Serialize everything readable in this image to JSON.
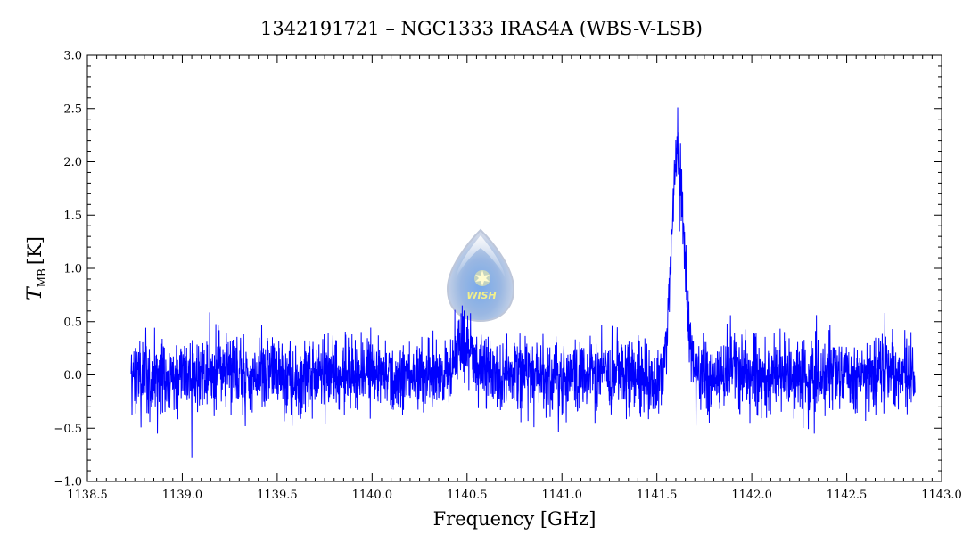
{
  "chart_data": {
    "type": "line",
    "title": "1342191721 – NGC1333 IRAS4A (WBS-V-LSB)",
    "xlabel": "Frequency [GHz]",
    "ylabel_main": "T",
    "ylabel_sub": "MB",
    "ylabel_unit": "[K]",
    "xlim": [
      1138.5,
      1143.0
    ],
    "ylim": [
      -1.0,
      3.0
    ],
    "x_ticks": [
      1138.5,
      1139.0,
      1139.5,
      1140.0,
      1140.5,
      1141.0,
      1141.5,
      1142.0,
      1142.5,
      1143.0
    ],
    "x_tick_labels": [
      "1138.5",
      "1139.0",
      "1139.5",
      "1140.0",
      "1140.5",
      "1141.0",
      "1141.5",
      "1142.0",
      "1142.5",
      "1143.0"
    ],
    "y_ticks": [
      -1.0,
      -0.5,
      0.0,
      0.5,
      1.0,
      1.5,
      2.0,
      2.5,
      3.0
    ],
    "y_tick_labels": [
      "−1.0",
      "−0.5",
      "0.0",
      "0.5",
      "1.0",
      "1.5",
      "2.0",
      "2.5",
      "3.0"
    ],
    "grid": false,
    "series": [
      {
        "color": "#0000ff",
        "x_range": [
          1138.73,
          1142.86
        ],
        "noise_rms": 0.17,
        "features": [
          {
            "type": "gaussian",
            "center": 1141.61,
            "amplitude": 2.05,
            "fwhm": 0.08
          },
          {
            "type": "gaussian",
            "center": 1140.47,
            "amplitude": 0.3,
            "fwhm": 0.1
          }
        ],
        "peak": {
          "x": 1141.61,
          "y": 2.51
        },
        "min": {
          "x": 1139.05,
          "y": -0.78
        }
      }
    ]
  },
  "logo": {
    "text": "WISH",
    "icon": "water-drop-star-icon"
  }
}
